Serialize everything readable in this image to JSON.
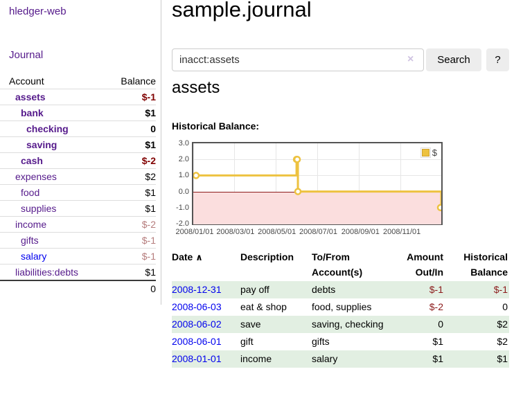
{
  "app": {
    "brand": "hledger-web",
    "nav_journal": "Journal"
  },
  "page": {
    "title": "sample.journal"
  },
  "search": {
    "value": "inacct:assets",
    "clear_icon": "×",
    "button_label": "Search",
    "help_label": "?"
  },
  "account_view": {
    "heading": "assets",
    "chart_label": "Historical Balance:"
  },
  "sidebar_table": {
    "col_account": "Account",
    "col_balance": "Balance",
    "rows": [
      {
        "name": "assets",
        "balance": "$-1"
      },
      {
        "name": "bank",
        "balance": "$1"
      },
      {
        "name": "checking",
        "balance": "0"
      },
      {
        "name": "saving",
        "balance": "$1"
      },
      {
        "name": "cash",
        "balance": "$-2"
      },
      {
        "name": "expenses",
        "balance": "$2"
      },
      {
        "name": "food",
        "balance": "$1"
      },
      {
        "name": "supplies",
        "balance": "$1"
      },
      {
        "name": "income",
        "balance": "$-2"
      },
      {
        "name": "gifts",
        "balance": "$-1"
      },
      {
        "name": "salary",
        "balance": "$-1"
      },
      {
        "name": "liabilities:debts",
        "balance": "$1"
      }
    ],
    "total": "0"
  },
  "chart_data": {
    "type": "line",
    "title": "Historical Balance:",
    "legend": [
      {
        "label": "$",
        "color": "#edc240"
      }
    ],
    "x_start": "2008/01/01",
    "x_end": "2008/12/31",
    "x_ticks": [
      "2008/01/01",
      "2008/03/01",
      "2008/05/01",
      "2008/07/01",
      "2008/09/01",
      "2008/11/01"
    ],
    "y_ticks": [
      "3.0",
      "2.0",
      "1.0",
      "0.0",
      "-1.0",
      "-2.0"
    ],
    "y_max": 3,
    "y_min": -2,
    "y_gridlines": [
      2,
      1,
      -1
    ],
    "zero_line": 0,
    "series": [
      {
        "name": "$",
        "points": [
          {
            "date": "2008/01/01",
            "value": 1
          },
          {
            "date": "2008/06/01",
            "value": 2
          },
          {
            "date": "2008/06/02",
            "value": 2
          },
          {
            "date": "2008/06/03",
            "value": 0
          },
          {
            "date": "2008/12/31",
            "value": -1
          }
        ]
      }
    ]
  },
  "register": {
    "headers": {
      "date": "Date",
      "sort_icon": "∧",
      "description": "Description",
      "account_l1": "To/From",
      "account_l2": "Account(s)",
      "amount_l1": "Amount",
      "amount_l2": "Out/In",
      "balance_l1": "Historical",
      "balance_l2": "Balance"
    },
    "rows": [
      {
        "date": "2008-12-31",
        "description": "pay off",
        "accounts": "debts",
        "amount": "$-1",
        "balance": "$-1"
      },
      {
        "date": "2008-06-03",
        "description": "eat & shop",
        "accounts": "food, supplies",
        "amount": "$-2",
        "balance": "0"
      },
      {
        "date": "2008-06-02",
        "description": "save",
        "accounts": "saving, checking",
        "amount": "0",
        "balance": "$2"
      },
      {
        "date": "2008-06-01",
        "description": "gift",
        "accounts": "gifts",
        "amount": "$1",
        "balance": "$2"
      },
      {
        "date": "2008-01-01",
        "description": "income",
        "accounts": "salary",
        "amount": "$1",
        "balance": "$1"
      }
    ]
  },
  "colors": {
    "link_visited_purple": "#551a8b",
    "link_blue": "#0000ee",
    "negative_red": "#800000",
    "negative_pale": "#b57c7c",
    "row_stripe_green": "#e2efe2",
    "chart_line_yellow": "#edc240",
    "chart_negative_fill": "#fbdede",
    "chart_zero_line": "#8b1a1a",
    "chart_border": "#545454"
  }
}
